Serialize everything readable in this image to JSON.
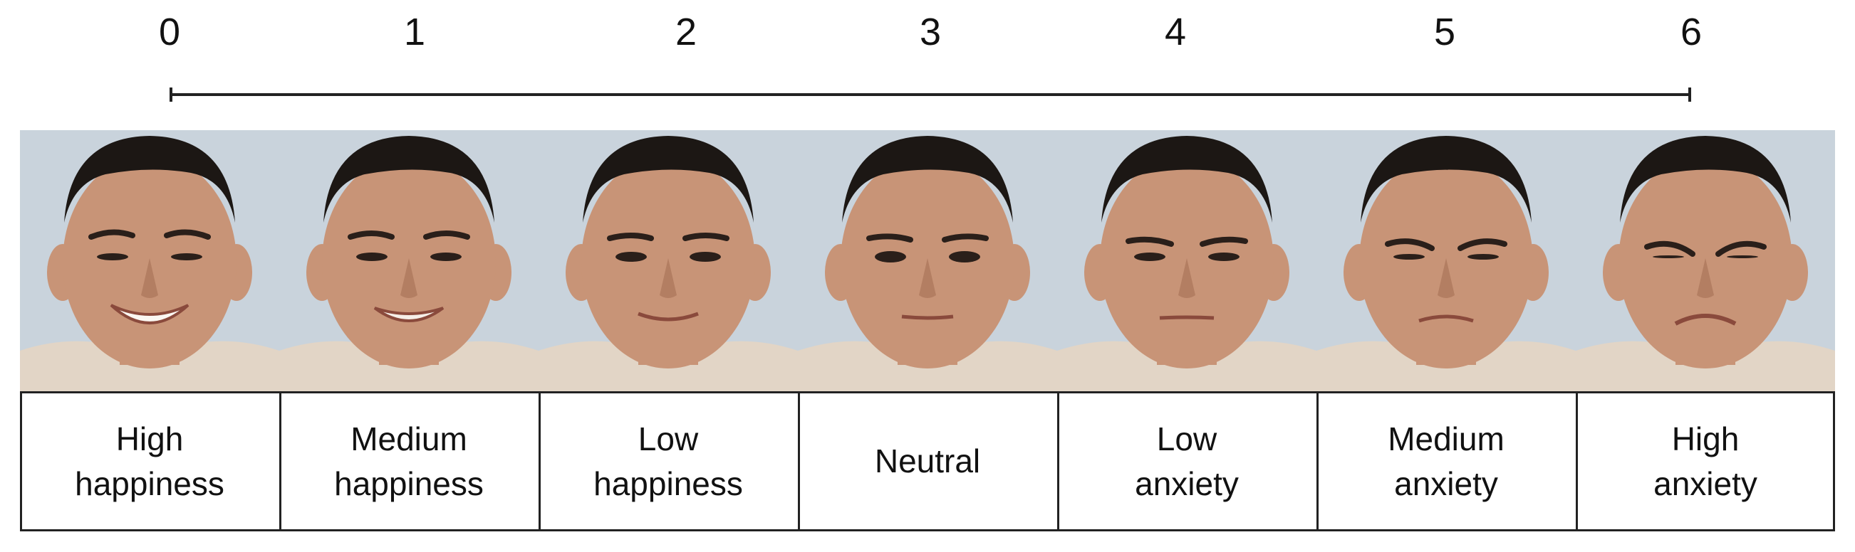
{
  "scale": {
    "ticks": [
      "0",
      "1",
      "2",
      "3",
      "4",
      "5",
      "6"
    ]
  },
  "panels": [
    {
      "line1": "High",
      "line2": "happiness",
      "expression": "broad smile"
    },
    {
      "line1": "Medium",
      "line2": "happiness",
      "expression": "smile"
    },
    {
      "line1": "Low",
      "line2": "happiness",
      "expression": "slight smile"
    },
    {
      "line1": "Neutral",
      "line2": "",
      "expression": "neutral"
    },
    {
      "line1": "Low",
      "line2": "anxiety",
      "expression": "slight tension"
    },
    {
      "line1": "Medium",
      "line2": "anxiety",
      "expression": "frown"
    },
    {
      "line1": "High",
      "line2": "anxiety",
      "expression": "grimace"
    }
  ],
  "colors": {
    "background": "#ffffff",
    "line": "#222222",
    "wall": "#c9d3dc",
    "skin": "#c89477",
    "hair": "#1c1714",
    "shirt": "#e2d5c6"
  }
}
